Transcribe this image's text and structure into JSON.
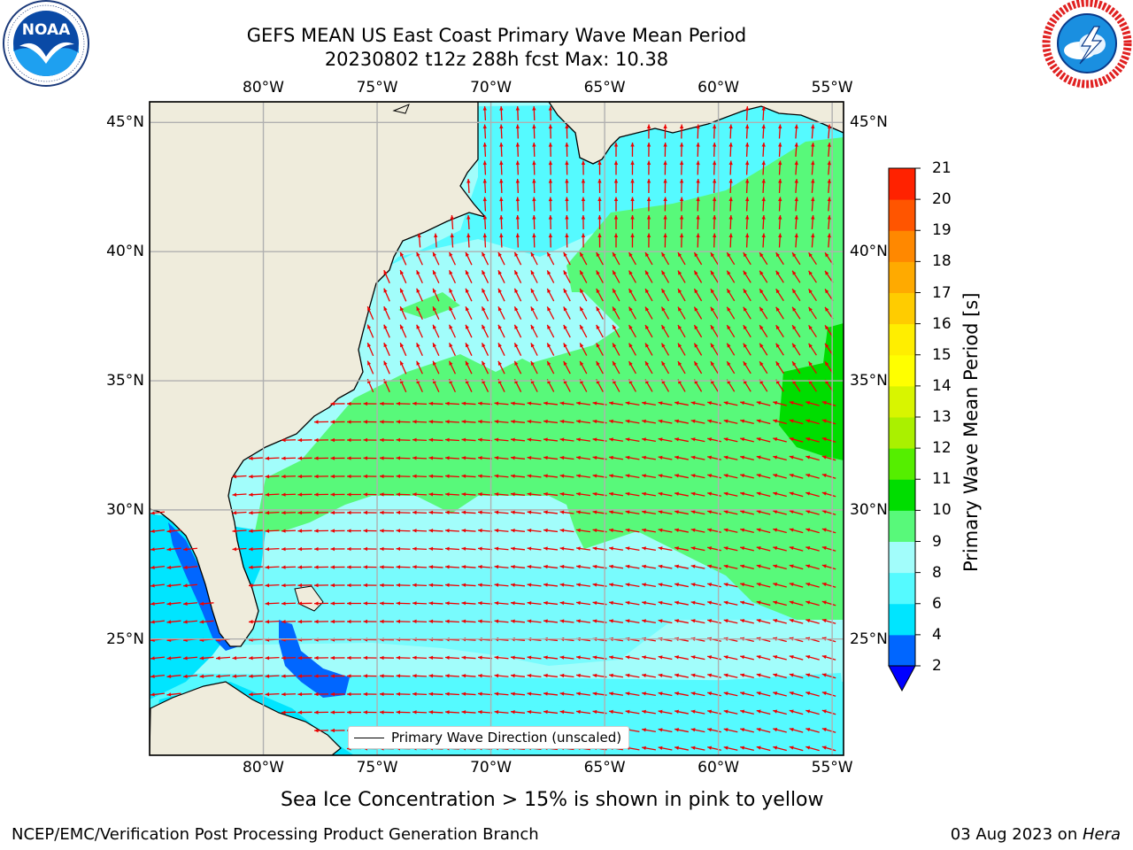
{
  "header": {
    "title_line1": "GEFS MEAN US East Coast Primary Wave Mean Period",
    "title_line2": "20230802 t12z 288h fcst   Max: 10.38"
  },
  "logos": {
    "left": {
      "icon": "noaa-logo",
      "text": "NOAA",
      "ring_text": "NATIONAL OCEANIC AND ATMOSPHERIC ADMINISTRATION · U.S. DEPARTMENT OF COMMERCE"
    },
    "right": {
      "icon": "nws-logo",
      "ring_text": "NATIONAL WEATHER SERVICE"
    }
  },
  "map": {
    "lon_labels": [
      "80°W",
      "75°W",
      "70°W",
      "65°W",
      "60°W",
      "55°W"
    ],
    "lat_labels": [
      "45°N",
      "40°N",
      "35°N",
      "30°N",
      "25°N"
    ],
    "lon_range": [
      -85,
      -54.5
    ],
    "lat_range": [
      20.5,
      45.8
    ],
    "legend_label": "Primary Wave Direction (unscaled)",
    "land_color": "#efecdc",
    "arrow_color": "#ee0000",
    "grid": true
  },
  "colorbar": {
    "label": "Primary Wave Mean Period [s]",
    "ticks": [
      "2",
      "4",
      "6",
      "8",
      "9",
      "10",
      "11",
      "12",
      "13",
      "14",
      "15",
      "16",
      "17",
      "18",
      "19",
      "20",
      "21"
    ],
    "colors": [
      "#0066ff",
      "#00e5ff",
      "#55faff",
      "#a2fdfb",
      "#58f97a",
      "#00dd00",
      "#55ee00",
      "#aaf000",
      "#d8f500",
      "#ffff00",
      "#ffee00",
      "#ffcc00",
      "#ffaa00",
      "#ff8800",
      "#ff5500",
      "#ff2200"
    ],
    "under_color": "#0000ff"
  },
  "chart_data": {
    "type": "heatmap",
    "title": "GEFS MEAN US East Coast Primary Wave Mean Period",
    "subtitle": "20230802 t12z 288h fcst   Max: 10.38",
    "colorbar_label": "Primary Wave Mean Period [s]",
    "levels": [
      2,
      4,
      6,
      8,
      9,
      10,
      11,
      12,
      13,
      14,
      15,
      16,
      17,
      18,
      19,
      20,
      21
    ],
    "max": 10.38,
    "xlabels": [
      "80°W",
      "75°W",
      "70°W",
      "65°W",
      "60°W",
      "55°W"
    ],
    "ylabels": [
      "45°N",
      "40°N",
      "35°N",
      "30°N",
      "25°N"
    ],
    "grid": true
  },
  "footer": {
    "note": "Sea Ice Concentration > 15% is shown in pink to yellow",
    "left": "NCEP/EMC/Verification Post Processing Product Generation Branch",
    "right_date": "03 Aug 2023 on ",
    "right_host": "Hera"
  }
}
